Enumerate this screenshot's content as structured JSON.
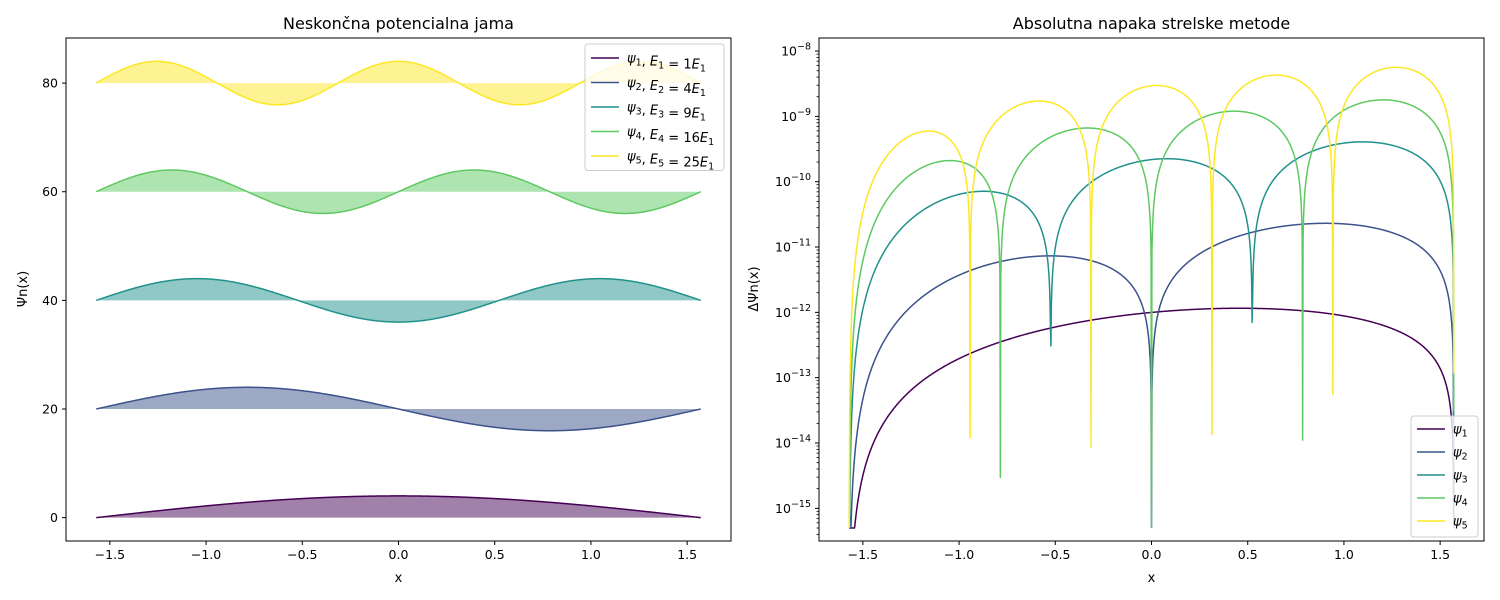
{
  "chart_data": [
    {
      "type": "line",
      "title": "Neskončna potencialna jama",
      "xlabel": "x",
      "ylabel": "Ψn(x)",
      "xlim": [
        -1.7279,
        1.7279
      ],
      "ylim": [
        -4.3,
        88.3
      ],
      "xticks": [
        -1.5,
        -1.0,
        -0.5,
        0.0,
        0.5,
        1.0,
        1.5
      ],
      "xtick_labels": [
        "−1.5",
        "−1.0",
        "−0.5",
        "0.0",
        "0.5",
        "1.0",
        "1.5"
      ],
      "yticks": [
        0,
        20,
        40,
        60,
        80
      ],
      "ytick_labels": [
        "0",
        "20",
        "40",
        "60",
        "80"
      ],
      "grid": false,
      "legend_position": "upper-right",
      "fill_to_baseline": true,
      "x_domain": [
        -1.5708,
        1.5708
      ],
      "series": [
        {
          "n": 1,
          "name": "ψ1, E1 = 1E1",
          "offset": 0,
          "amplitude": 4,
          "color": "#440154"
        },
        {
          "n": 2,
          "name": "ψ2, E2 = 4E1",
          "offset": 20,
          "amplitude": 4,
          "color": "#3b528b"
        },
        {
          "n": 3,
          "name": "ψ3, E3 = 9E1",
          "offset": 40,
          "amplitude": 4,
          "color": "#21918c"
        },
        {
          "n": 4,
          "name": "ψ4, E4 = 16E1",
          "offset": 60,
          "amplitude": 4,
          "color": "#5ec962"
        },
        {
          "n": 5,
          "name": "ψ5, E5 = 25E1",
          "offset": 80,
          "amplitude": 4,
          "color": "#fde725"
        }
      ]
    },
    {
      "type": "line",
      "title": "Absolutna napaka strelske metode",
      "xlabel": "x",
      "ylabel": "ΔΨn(x)",
      "xlim": [
        -1.7279,
        1.7279
      ],
      "ylim_log10": [
        -15.5,
        -7.8
      ],
      "yscale": "log",
      "xticks": [
        -1.5,
        -1.0,
        -0.5,
        0.0,
        0.5,
        1.0,
        1.5
      ],
      "xtick_labels": [
        "−1.5",
        "−1.0",
        "−0.5",
        "0.0",
        "0.5",
        "1.0",
        "1.5"
      ],
      "ytick_exponents": [
        -15,
        -14,
        -13,
        -12,
        -11,
        -10,
        -9,
        -8
      ],
      "grid": false,
      "legend_position": "lower-right",
      "x_domain": [
        -1.5708,
        1.5708
      ],
      "series": [
        {
          "name": "ψ1",
          "color": "#440154",
          "log10_scale": -11.7,
          "growth": 1.0,
          "min_log10": -15.3
        },
        {
          "name": "ψ2",
          "color": "#3b528b",
          "log10_scale": -10.5,
          "growth": 1.2,
          "min_log10": -15.3
        },
        {
          "name": "ψ3",
          "color": "#21918c",
          "log10_scale": -9.3,
          "growth": 1.2,
          "min_log10": -15.3
        },
        {
          "name": "ψ4",
          "color": "#5ec962",
          "log10_scale": -8.68,
          "growth": 1.2,
          "min_log10": -15.3
        },
        {
          "name": "ψ5",
          "color": "#fde725",
          "log10_scale": -8.2,
          "growth": 1.1,
          "min_log10": -15.3
        }
      ]
    }
  ]
}
